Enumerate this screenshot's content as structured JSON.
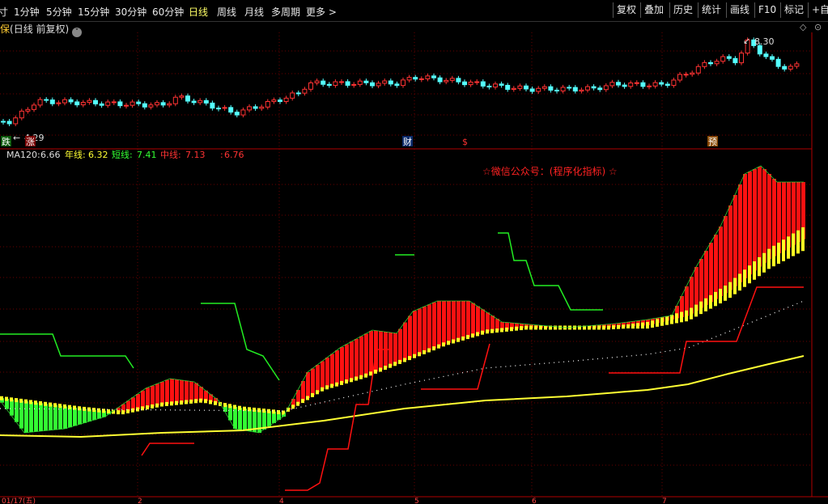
{
  "toolbar": {
    "periods": [
      "寸",
      "1分钟",
      "5分钟",
      "15分钟",
      "30分钟",
      "60分钟",
      "日线",
      "周线",
      "月线",
      "多周期",
      "更多 >"
    ],
    "buttons": [
      "复权",
      "叠加",
      "历史",
      "统计",
      "画线",
      "F10",
      "标记",
      "+自"
    ]
  },
  "chart_header": {
    "stock": "保",
    "mode": "(日线 前复权)"
  },
  "price_panel": {
    "high_label": "8.30",
    "low_label": "4.29",
    "markers": [
      "跌",
      "涨",
      "财",
      "$",
      "预"
    ]
  },
  "indicator_panel": {
    "legend": [
      {
        "label": "MA120:",
        "value": "6.66"
      },
      {
        "label": "年线:",
        "value": "6.32"
      },
      {
        "label": "短线:",
        "value": "7.41"
      },
      {
        "label": "中线:",
        "value": "7.13"
      },
      {
        "label": ":",
        "value": "6.76"
      }
    ],
    "annotation": "☆微信公众号：(程序化指标) ☆"
  },
  "x_axis": {
    "labels": [
      "01/17(五)",
      "2",
      "4",
      "5",
      "6",
      "7"
    ]
  }
}
